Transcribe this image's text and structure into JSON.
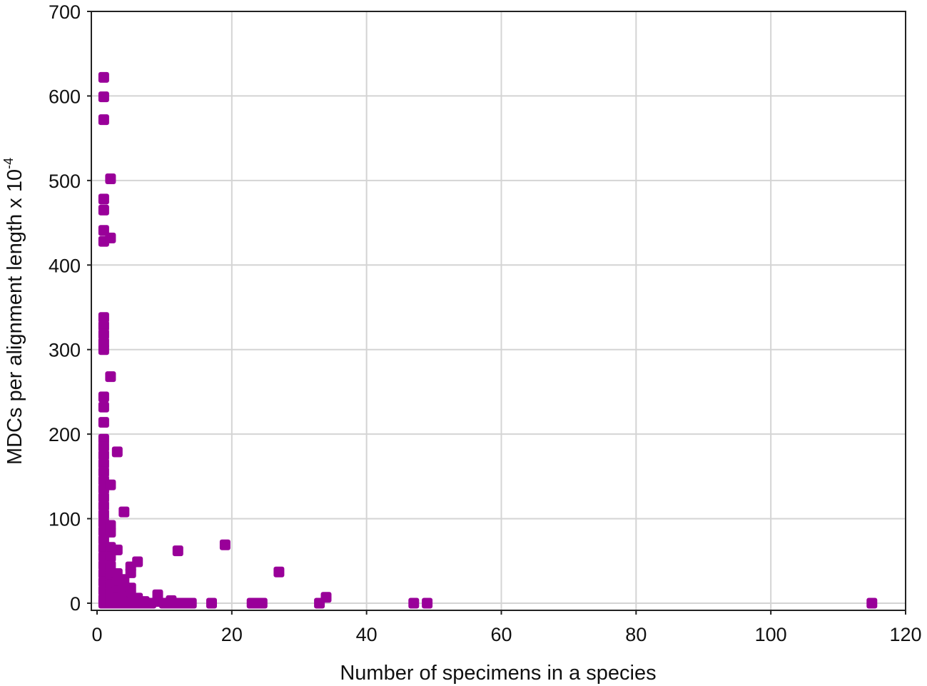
{
  "chart_data": {
    "type": "scatter",
    "xlabel": "Number of specimens in a species",
    "ylabel": "MDCs per alignment length x 10",
    "ylabel_exponent": "-4",
    "xlim": [
      0,
      120
    ],
    "ylim": [
      0,
      700
    ],
    "xticks": [
      0,
      20,
      40,
      60,
      80,
      100,
      120
    ],
    "yticks": [
      0,
      100,
      200,
      300,
      400,
      500,
      600,
      700
    ],
    "grid": true,
    "marker_color": "#990099",
    "points": [
      [
        1,
        622
      ],
      [
        1,
        599
      ],
      [
        1,
        572
      ],
      [
        1,
        478
      ],
      [
        1,
        465
      ],
      [
        1,
        441
      ],
      [
        1,
        428
      ],
      [
        2,
        502
      ],
      [
        2,
        432
      ],
      [
        1,
        338
      ],
      [
        1,
        328
      ],
      [
        1,
        318
      ],
      [
        1,
        308
      ],
      [
        1,
        300
      ],
      [
        2,
        268
      ],
      [
        1,
        244
      ],
      [
        1,
        232
      ],
      [
        1,
        214
      ],
      [
        1,
        194
      ],
      [
        1,
        185
      ],
      [
        1,
        175
      ],
      [
        1,
        165
      ],
      [
        1,
        155
      ],
      [
        1,
        145
      ],
      [
        1,
        135
      ],
      [
        1,
        125
      ],
      [
        1,
        115
      ],
      [
        1,
        105
      ],
      [
        1,
        95
      ],
      [
        1,
        85
      ],
      [
        1,
        75
      ],
      [
        1,
        65
      ],
      [
        1,
        55
      ],
      [
        1,
        45
      ],
      [
        1,
        35
      ],
      [
        1,
        25
      ],
      [
        1,
        15
      ],
      [
        1,
        5
      ],
      [
        1,
        0
      ],
      [
        2,
        140
      ],
      [
        2,
        92
      ],
      [
        2,
        84
      ],
      [
        2,
        66
      ],
      [
        2,
        55
      ],
      [
        2,
        44
      ],
      [
        2,
        33
      ],
      [
        2,
        22
      ],
      [
        2,
        12
      ],
      [
        2,
        4
      ],
      [
        2,
        0
      ],
      [
        3,
        179
      ],
      [
        3,
        63
      ],
      [
        3,
        35
      ],
      [
        3,
        24
      ],
      [
        3,
        14
      ],
      [
        3,
        6
      ],
      [
        3,
        0
      ],
      [
        4,
        108
      ],
      [
        4,
        28
      ],
      [
        4,
        20
      ],
      [
        4,
        12
      ],
      [
        4,
        5
      ],
      [
        4,
        0
      ],
      [
        5,
        43
      ],
      [
        5,
        36
      ],
      [
        5,
        18
      ],
      [
        5,
        10
      ],
      [
        5,
        2
      ],
      [
        5,
        0
      ],
      [
        6,
        49
      ],
      [
        6,
        6
      ],
      [
        6,
        0
      ],
      [
        7,
        2
      ],
      [
        7,
        0
      ],
      [
        8,
        0
      ],
      [
        9,
        10
      ],
      [
        9,
        2
      ],
      [
        10,
        0
      ],
      [
        11,
        3
      ],
      [
        11,
        0
      ],
      [
        12,
        62
      ],
      [
        12,
        0
      ],
      [
        13,
        0
      ],
      [
        14,
        0
      ],
      [
        17,
        0
      ],
      [
        19,
        69
      ],
      [
        23,
        0
      ],
      [
        24,
        0
      ],
      [
        24.5,
        0
      ],
      [
        27,
        37
      ],
      [
        33,
        0
      ],
      [
        34,
        7
      ],
      [
        47,
        0
      ],
      [
        49,
        0
      ],
      [
        115,
        0
      ]
    ]
  }
}
